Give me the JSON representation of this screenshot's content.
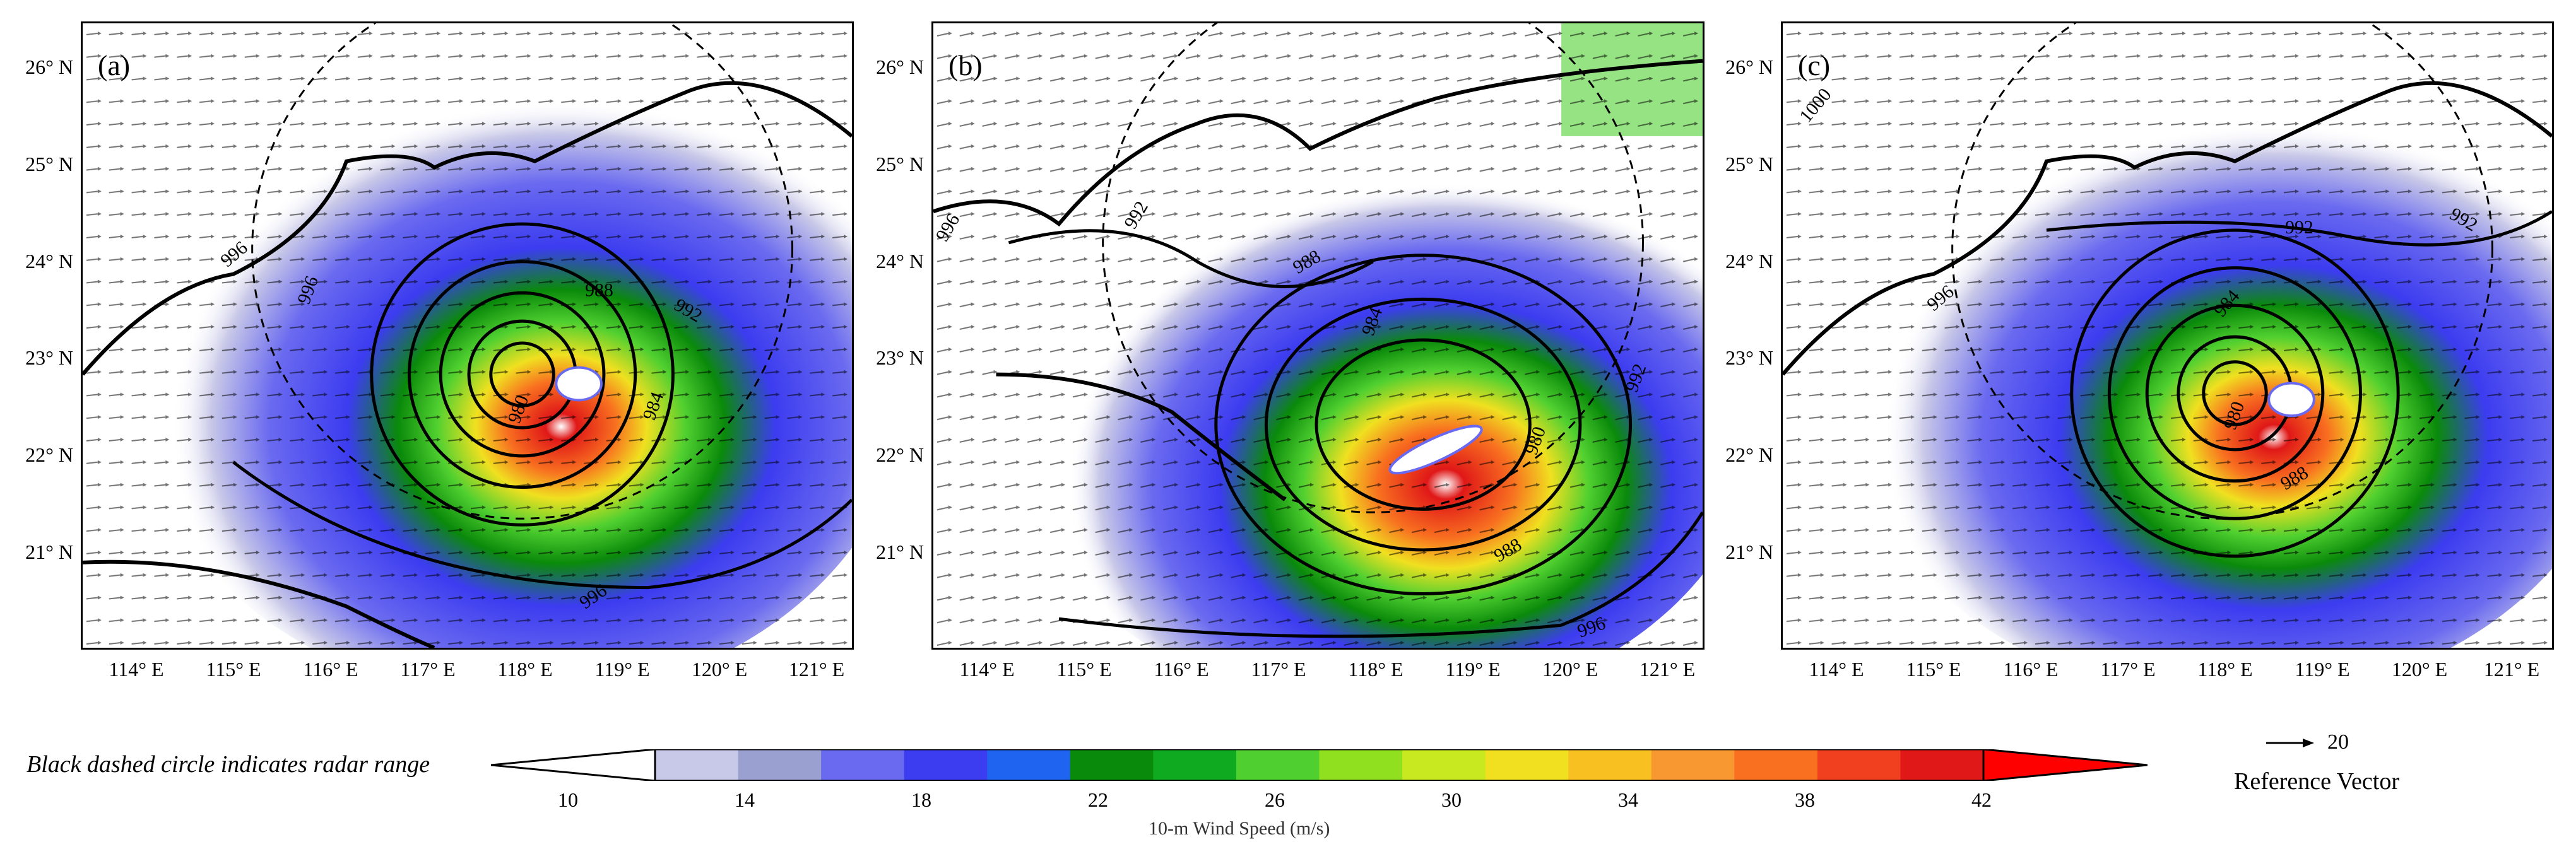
{
  "panels": [
    {
      "label": "(a)"
    },
    {
      "label": "(b)"
    },
    {
      "label": "(c)"
    }
  ],
  "lat_ticks": [
    "26° N",
    "25° N",
    "24° N",
    "23° N",
    "22° N",
    "21° N"
  ],
  "lon_ticks": [
    "114° E",
    "115° E",
    "116° E",
    "117° E",
    "118° E",
    "119° E",
    "120° E",
    "121° E"
  ],
  "contour_labels": {
    "a": [
      "996",
      "996",
      "988",
      "992",
      "980",
      "984",
      "996"
    ],
    "b": [
      "996",
      "992",
      "988",
      "984",
      "992",
      "980",
      "988",
      "996"
    ],
    "c": [
      "1000",
      "992",
      "992",
      "996",
      "984",
      "980",
      "988"
    ]
  },
  "note": "Black dashed circle indicates radar range",
  "colorbar": {
    "ticks": [
      "10",
      "14",
      "18",
      "22",
      "26",
      "30",
      "34",
      "38",
      "42"
    ],
    "title": "10-m Wind Speed (m/s)",
    "colors": [
      "#ffffff",
      "#c8c8e8",
      "#9aa0d0",
      "#6a6af0",
      "#3c3cf0",
      "#1e64f0",
      "#0a8a0a",
      "#10aa20",
      "#50d030",
      "#90e020",
      "#c8e820",
      "#f0e020",
      "#f8c020",
      "#f89830",
      "#f87020",
      "#f04020",
      "#e01818",
      "#ff0000"
    ]
  },
  "reference_vector": {
    "value": "20",
    "label": "Reference Vector"
  },
  "colors": {
    "text": "#000000"
  }
}
